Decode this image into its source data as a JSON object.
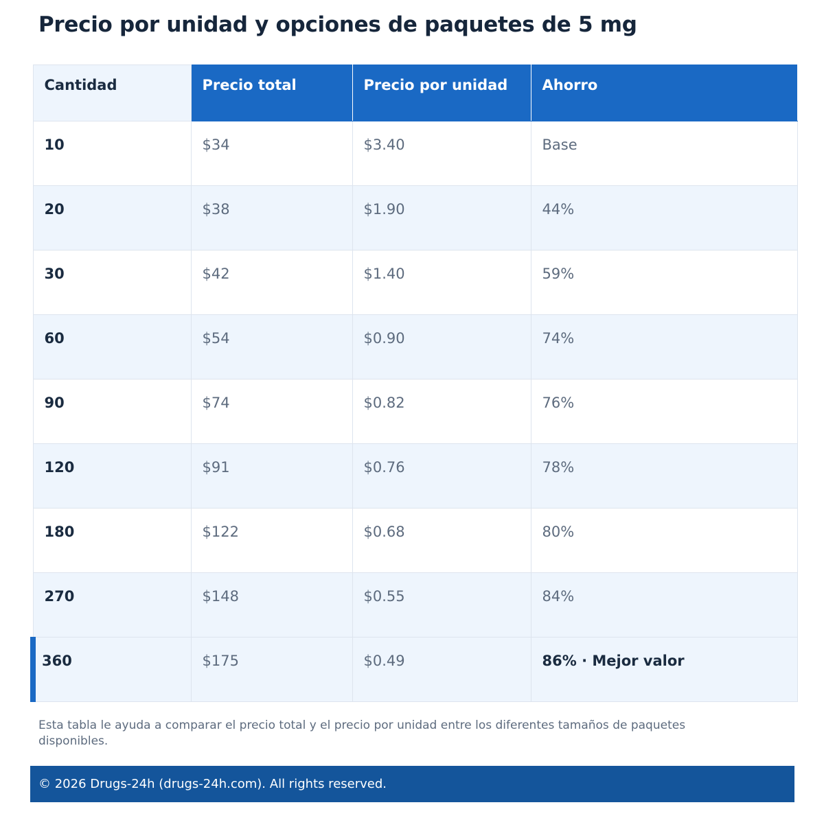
{
  "page": {
    "title": "Precio por unidad y opciones de paquetes de 5 mg"
  },
  "table": {
    "headers": {
      "quantity": "Cantidad",
      "total_price": "Precio total",
      "unit_price": "Precio por unidad",
      "savings": "Ahorro"
    },
    "rows": [
      {
        "quantity": "10",
        "total": "$34",
        "unit": "$3.40",
        "savings": "Base"
      },
      {
        "quantity": "20",
        "total": "$38",
        "unit": "$1.90",
        "savings": "44%"
      },
      {
        "quantity": "30",
        "total": "$42",
        "unit": "$1.40",
        "savings": "59%"
      },
      {
        "quantity": "60",
        "total": "$54",
        "unit": "$0.90",
        "savings": "74%"
      },
      {
        "quantity": "90",
        "total": "$74",
        "unit": "$0.82",
        "savings": "76%"
      },
      {
        "quantity": "120",
        "total": "$91",
        "unit": "$0.76",
        "savings": "78%"
      },
      {
        "quantity": "180",
        "total": "$122",
        "unit": "$0.68",
        "savings": "80%"
      },
      {
        "quantity": "270",
        "total": "$148",
        "unit": "$0.55",
        "savings": "84%"
      },
      {
        "quantity": "360",
        "total": "$175",
        "unit": "$0.49",
        "savings": "86% · Mejor valor"
      }
    ]
  },
  "note": "Esta tabla le ayuda a comparar el precio total y el precio por unidad entre los diferentes tamaños de paquetes disponibles.",
  "footer": {
    "copyright": "© 2026 Drugs-24h (drugs-24h.com). All rights reserved."
  },
  "colors": {
    "accent": "#1a69c4",
    "footer_bg": "#14559b",
    "row_alt_bg": "#eef5fd"
  }
}
